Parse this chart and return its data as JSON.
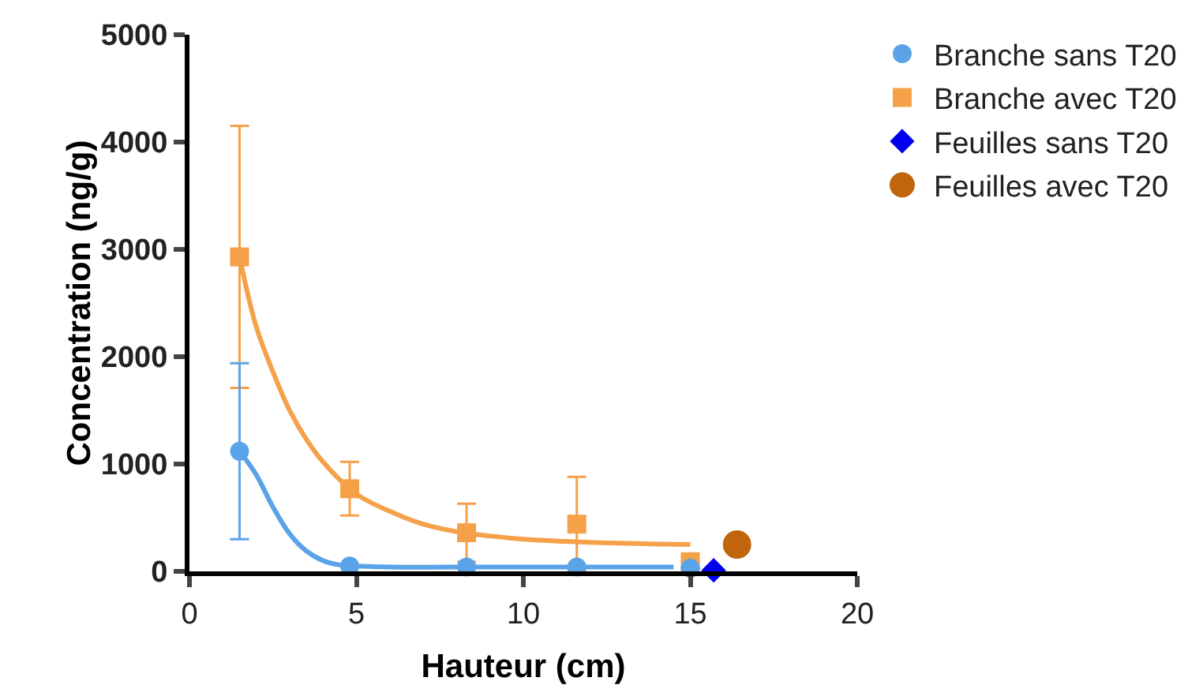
{
  "chart_data": {
    "type": "scatter",
    "xlabel": "Hauteur (cm)",
    "ylabel": "Concentration (ng/g)",
    "xlim": [
      0,
      20
    ],
    "xticks": [
      0,
      5,
      10,
      15,
      20
    ],
    "ylim": [
      0,
      5000
    ],
    "yticks": [
      0,
      1000,
      2000,
      3000,
      4000,
      5000
    ],
    "grid": false,
    "legend": "top right",
    "series": [
      {
        "type": "line",
        "color": "#5ba3e8",
        "line_style": "solid",
        "marker": "none",
        "x": [
          1.5,
          2,
          2.5,
          3,
          3.5,
          4,
          4.5,
          5,
          6,
          8,
          14.5
        ],
        "values": [
          1120,
          900,
          600,
          350,
          190,
          100,
          60,
          50,
          40,
          40,
          40
        ]
      },
      {
        "type": "line",
        "color": "#f5a14a",
        "line_style": "solid",
        "marker": "none",
        "x": [
          1.5,
          2,
          2.5,
          3,
          3.5,
          4,
          5,
          6,
          7,
          8,
          9,
          10,
          12,
          15
        ],
        "values": [
          2930,
          2280,
          1860,
          1500,
          1230,
          1020,
          720,
          560,
          440,
          370,
          330,
          300,
          270,
          250
        ]
      },
      {
        "name": "Branche sans T20",
        "color": "#5ba3e8",
        "marker": "circle",
        "x": [
          1.5,
          4.8,
          8.3,
          11.6,
          15
        ],
        "values": [
          1120,
          50,
          40,
          40,
          30
        ],
        "errors": [
          820,
          null,
          null,
          null,
          null
        ]
      },
      {
        "name": "Branche avec T20",
        "color": "#f5a14a",
        "marker": "square",
        "x": [
          1.5,
          4.8,
          8.3,
          11.6,
          15
        ],
        "values": [
          2930,
          770,
          360,
          440,
          90
        ],
        "errors": [
          1220,
          250,
          270,
          440,
          null
        ]
      },
      {
        "name": "Feuilles sans T20",
        "color": "#0000ee",
        "marker": "diamond",
        "x": [
          15.7
        ],
        "values": [
          10
        ]
      },
      {
        "name": "Feuilles avec T20",
        "color": "#c0650e",
        "marker": "circle",
        "x": [
          16.4
        ],
        "values": [
          250
        ]
      }
    ]
  }
}
